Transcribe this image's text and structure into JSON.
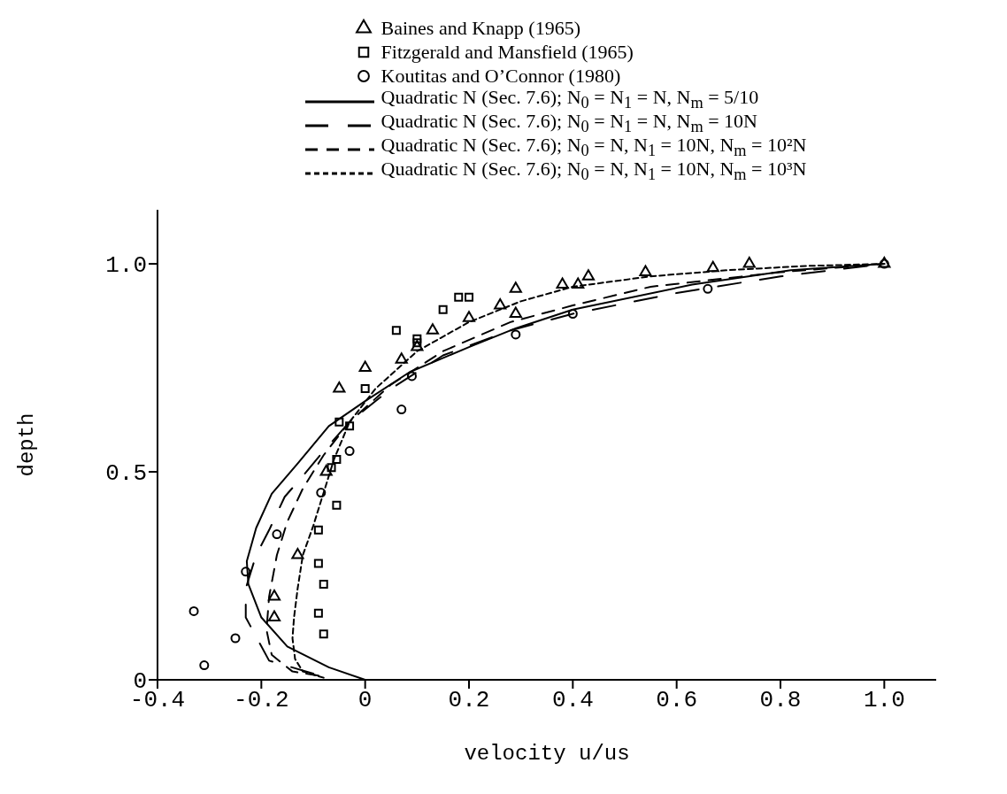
{
  "chart_data": {
    "type": "scatter",
    "xlabel": "velocity u/us",
    "ylabel": "depth",
    "xlim": [
      -0.4,
      1.1
    ],
    "ylim": [
      0,
      1.13
    ],
    "xticks": [
      -0.4,
      -0.2,
      0,
      0.2,
      0.4,
      0.6,
      0.8,
      {
        "value": 1.0,
        "label": "1.0"
      }
    ],
    "yticks": [
      0,
      0.5,
      {
        "value": 1.0,
        "label": "1.0"
      }
    ],
    "legend": "top",
    "series": [
      {
        "name": "Baines and Knapp (1965)",
        "type": "scatter",
        "marker": "triangle",
        "color": "#000000",
        "x": [
          0.74,
          0.67,
          0.54,
          0.43,
          0.41,
          0.38,
          0.29,
          0.29,
          0.26,
          0.2,
          0.13,
          0.1,
          0.07,
          0.0,
          -0.05,
          -0.075,
          -0.13,
          -0.175,
          -0.175,
          1.0
        ],
        "values": [
          1.0,
          0.99,
          0.98,
          0.97,
          0.95,
          0.95,
          0.94,
          0.88,
          0.9,
          0.87,
          0.84,
          0.8,
          0.77,
          0.75,
          0.7,
          0.5,
          0.3,
          0.2,
          0.15,
          1.0
        ]
      },
      {
        "name": "Fitzgerald and Mansfield (1965)",
        "type": "scatter",
        "marker": "square",
        "color": "#000000",
        "x": [
          0.15,
          0.18,
          0.2,
          0.1,
          0.06,
          0.1,
          0.0,
          -0.05,
          -0.03,
          -0.055,
          -0.065,
          -0.055,
          -0.09,
          -0.09,
          -0.08,
          -0.09,
          -0.08
        ],
        "values": [
          0.89,
          0.92,
          0.92,
          0.82,
          0.84,
          0.81,
          0.7,
          0.62,
          0.61,
          0.53,
          0.51,
          0.42,
          0.36,
          0.28,
          0.23,
          0.16,
          0.11
        ]
      },
      {
        "name": "Koutitas and O’Connor (1980)",
        "type": "scatter",
        "marker": "circle",
        "color": "#000000",
        "x": [
          0.66,
          0.4,
          0.29,
          0.09,
          0.07,
          -0.03,
          -0.085,
          -0.17,
          -0.23,
          -0.33,
          -0.25,
          -0.31,
          1.0
        ],
        "values": [
          0.94,
          0.88,
          0.83,
          0.73,
          0.65,
          0.55,
          0.45,
          0.35,
          0.26,
          0.165,
          0.1,
          0.035,
          1.0
        ]
      },
      {
        "name": "Quadratic N (Sec. 7.6); N$_{0}$ = N$_{1}$ = N,  N$_{m}$ = 5/10",
        "type": "line",
        "line_style": "solid",
        "color": "#000000",
        "x": [
          0,
          -0.07,
          -0.15,
          -0.2,
          -0.225,
          -0.228,
          -0.21,
          -0.18,
          -0.13,
          -0.07,
          0,
          0.086,
          0.2,
          0.29,
          0.4,
          0.63,
          0.82,
          1.0
        ],
        "values": [
          0,
          0.03,
          0.08,
          0.15,
          0.23,
          0.285,
          0.365,
          0.447,
          0.52,
          0.61,
          0.67,
          0.74,
          0.8,
          0.845,
          0.89,
          0.95,
          0.985,
          1.0
        ]
      },
      {
        "name": "Quadratic N (Sec. 7.6); N$_{0}$ = N$_{1}$ = N,  N$_{m}$ = 10N",
        "type": "line",
        "line_style": "dashed",
        "color": "#000000",
        "x": [
          -0.1,
          -0.185,
          -0.23,
          -0.23,
          -0.21,
          -0.185,
          -0.155,
          -0.12,
          -0.08,
          -0.03,
          0.05,
          0.15,
          0.28,
          0.4,
          0.6,
          0.8,
          1.0
        ],
        "values": [
          0.015,
          0.046,
          0.15,
          0.22,
          0.3,
          0.36,
          0.44,
          0.49,
          0.55,
          0.62,
          0.7,
          0.78,
          0.84,
          0.88,
          0.93,
          0.97,
          1.0
        ]
      },
      {
        "name": "Quadratic N (Sec. 7.6); N$_{0}$ = N,  N$_{1}$ = 10N,  N$_{m}$ = 10²N",
        "type": "line",
        "line_style": "dashed",
        "color": "#000000",
        "x": [
          -0.09,
          -0.14,
          -0.18,
          -0.19,
          -0.185,
          -0.17,
          -0.15,
          -0.12,
          -0.08,
          -0.03,
          0.05,
          0.15,
          0.28,
          0.4,
          0.55,
          0.8,
          1.0
        ],
        "values": [
          0.01,
          0.02,
          0.06,
          0.12,
          0.2,
          0.3,
          0.38,
          0.46,
          0.54,
          0.62,
          0.71,
          0.79,
          0.86,
          0.9,
          0.945,
          0.98,
          1.0
        ]
      },
      {
        "name": "Quadratic N (Sec. 7.6); N$_{0}$ = N,  N$_{1}$ = 10N,  N$_{m}$ = 10³N",
        "type": "line",
        "line_style": "dotted",
        "color": "#000000",
        "x": [
          -0.08,
          -0.12,
          -0.135,
          -0.14,
          -0.137,
          -0.13,
          -0.12,
          -0.1,
          -0.08,
          -0.06,
          -0.03,
          0.02,
          0.1,
          0.2,
          0.3,
          0.4,
          0.55,
          0.7,
          0.85,
          1.0
        ],
        "values": [
          0.005,
          0.02,
          0.05,
          0.1,
          0.15,
          0.22,
          0.3,
          0.37,
          0.45,
          0.53,
          0.62,
          0.7,
          0.79,
          0.86,
          0.91,
          0.945,
          0.97,
          0.985,
          0.995,
          1.0
        ]
      }
    ]
  }
}
